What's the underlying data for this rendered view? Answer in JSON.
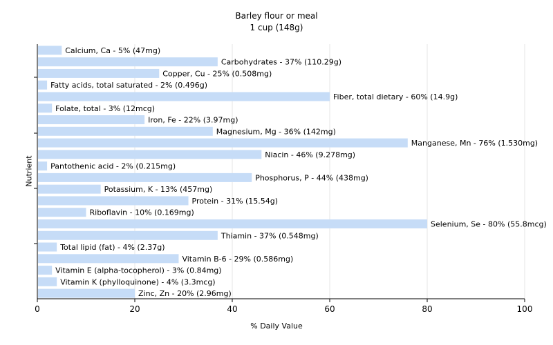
{
  "chart_data": {
    "type": "bar",
    "orientation": "horizontal",
    "title": "Barley flour or meal",
    "subtitle": "1 cup (148g)",
    "xlabel": "% Daily Value",
    "ylabel": "Nutrient",
    "xlim": [
      0,
      100
    ],
    "xticks": [
      0,
      20,
      40,
      60,
      80,
      100
    ],
    "grid": true,
    "bar_color": "#c6dcf7",
    "categories": [
      "Calcium, Ca - 5% (47mg)",
      "Carbohydrates - 37% (110.29g)",
      "Copper, Cu - 25% (0.508mg)",
      "Fatty acids, total saturated - 2% (0.496g)",
      "Fiber, total dietary - 60% (14.9g)",
      "Folate, total - 3% (12mcg)",
      "Iron, Fe - 22% (3.97mg)",
      "Magnesium, Mg - 36% (142mg)",
      "Manganese, Mn - 76% (1.530mg)",
      "Niacin - 46% (9.278mg)",
      "Pantothenic acid - 2% (0.215mg)",
      "Phosphorus, P - 44% (438mg)",
      "Potassium, K - 13% (457mg)",
      "Protein - 31% (15.54g)",
      "Riboflavin - 10% (0.169mg)",
      "Selenium, Se - 80% (55.8mcg)",
      "Thiamin - 37% (0.548mg)",
      "Total lipid (fat) - 4% (2.37g)",
      "Vitamin B-6 - 29% (0.586mg)",
      "Vitamin E (alpha-tocopherol) - 3% (0.84mg)",
      "Vitamin K (phylloquinone) - 4% (3.3mcg)",
      "Zinc, Zn - 20% (2.96mg)"
    ],
    "values": [
      5,
      37,
      25,
      2,
      60,
      3,
      22,
      36,
      76,
      46,
      2,
      44,
      13,
      31,
      10,
      80,
      37,
      4,
      29,
      3,
      4,
      20
    ]
  }
}
